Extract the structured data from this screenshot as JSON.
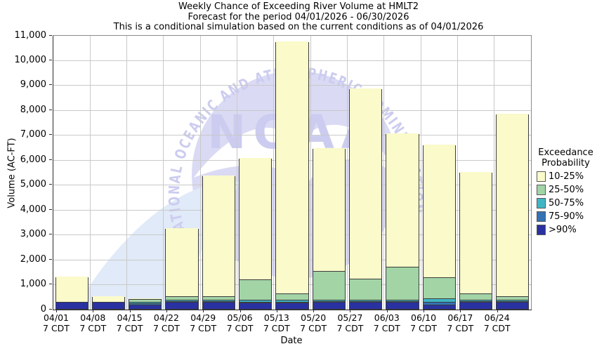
{
  "title": {
    "line1": "Weekly Chance of Exceeding River Volume at HMLT2",
    "line2": "Forecast for the period 04/01/2026 - 06/30/2026",
    "line3": "This is a conditional simulation based on the current conditions as of 04/01/2026"
  },
  "watermark": {
    "text": "NOAA",
    "ring_text": "NATIONAL OCEANIC AND ATMOSPHERIC ADMINISTRATION",
    "circle_color": "#DADAF4",
    "letter_color": "#CCCCF0",
    "swoosh_color": "#E0EAF8"
  },
  "legend": {
    "title_line1": "Exceedance",
    "title_line2": "Probability",
    "items": [
      {
        "label": "10-25%",
        "color": "#FAFACA"
      },
      {
        "label": "25-50%",
        "color": "#A2D4A6"
      },
      {
        "label": "50-75%",
        "color": "#3FB6C5"
      },
      {
        "label": "75-90%",
        "color": "#3472B4"
      },
      {
        "label": ">90%",
        "color": "#2A31A0"
      }
    ]
  },
  "chart_data": {
    "type": "bar",
    "subtype": "stacked",
    "title": "Weekly Chance of Exceeding River Volume at HMLT2",
    "xlabel": "Date",
    "ylabel": "Volume (AC-FT)",
    "ylim": [
      0,
      11000
    ],
    "ytick_step": 1000,
    "grid": true,
    "legend_position": "right",
    "legend_title": "Exceedance Probability",
    "categories": [
      "04/01",
      "04/08",
      "04/15",
      "04/22",
      "04/29",
      "05/06",
      "05/13",
      "05/20",
      "05/27",
      "06/03",
      "06/10",
      "06/17",
      "06/24"
    ],
    "category_sublabel": "7 CDT",
    "series": [
      {
        "name": ">90%",
        "color": "#2A31A0",
        "values": [
          250,
          250,
          150,
          250,
          250,
          225,
          225,
          250,
          250,
          250,
          150,
          250,
          250
        ]
      },
      {
        "name": "75-90%",
        "color": "#3472B4",
        "values": [
          0,
          0,
          50,
          25,
          25,
          25,
          25,
          25,
          25,
          25,
          100,
          25,
          25
        ]
      },
      {
        "name": "50-75%",
        "color": "#3FB6C5",
        "values": [
          0,
          0,
          60,
          50,
          50,
          75,
          75,
          75,
          75,
          75,
          150,
          75,
          50
        ]
      },
      {
        "name": "25-50%",
        "color": "#A2D4A6",
        "values": [
          0,
          0,
          115,
          150,
          150,
          825,
          275,
          1150,
          825,
          1300,
          850,
          250,
          150
        ]
      },
      {
        "name": "10-25%",
        "color": "#FAFACA",
        "values": [
          1050,
          250,
          50,
          2775,
          4875,
          4900,
          10150,
          4950,
          7675,
          5400,
          5350,
          4900,
          7375
        ]
      }
    ],
    "totals": [
      1300,
      500,
      425,
      3250,
      5350,
      6050,
      10750,
      6450,
      8850,
      7050,
      6600,
      5500,
      7850
    ]
  }
}
